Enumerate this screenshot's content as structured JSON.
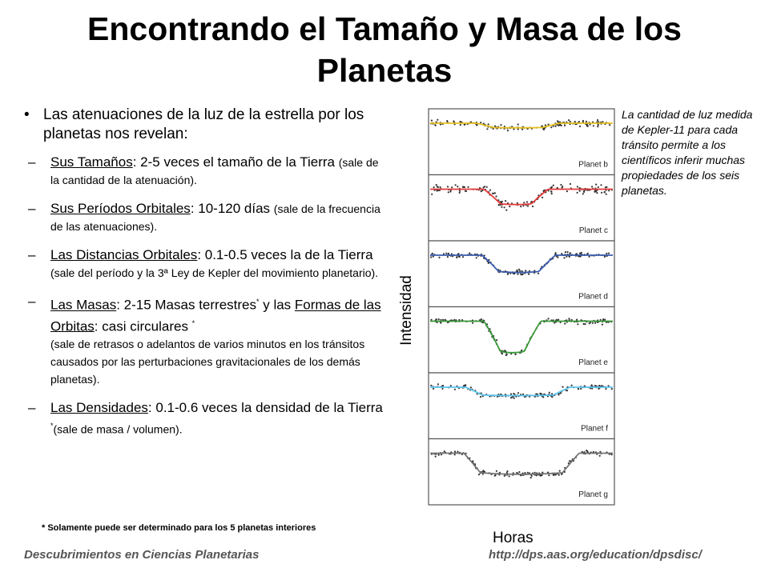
{
  "slide": {
    "title": "Encontrando el Tamaño y Masa de los Planetas",
    "bullet_main": "Las atenuaciones de la luz de la estrella por los planetas nos revelan:",
    "items": [
      {
        "label": "Sus Tamaños",
        "text": ": 2-5 veces el tamaño de la Tierra ",
        "note": "(sale de la cantidad de la atenuación)."
      },
      {
        "label": "Sus Períodos Orbitales",
        "text": ": 10-120 días ",
        "note": "(sale de la frecuencia de las atenuaciones)."
      },
      {
        "label": "Las Distancias Orbitales",
        "text": ": 0.1-0.5 veces la de la Tierra ",
        "note": "(sale del período y la 3ª Ley de Kepler del movimiento planetario)."
      },
      {
        "label": "Las Masas",
        "text": ": 2-15 Masas terrestres",
        "text2": " y las ",
        "label2": "Formas de las Orbitas",
        "text3": ": casi circulares ",
        "star": "*",
        "note": "(sale de retrasos o adelantos de varios minutos en los tránsitos causados por las perturbaciones gravitacionales de los demás planetas)."
      },
      {
        "label": "Las Densidades",
        "text": ": 0.1-0.6 veces la densidad de la Tierra ",
        "star": "*",
        "note": "(sale de masa / volumen)."
      }
    ],
    "footnote": "* Solamente puede ser determinado para los 5 planetas interiores",
    "side_caption": "La cantidad de luz medida de Kepler-11 para cada tránsito permite a los científicos inferir muchas propiedades de los seis planetas.",
    "footer_left": "Descubrimientos en Ciencias Planetarias",
    "footer_right": "http://dps.aas.org/education/dpsdisc/"
  },
  "chart_data": {
    "type": "line",
    "xlabel": "Horas",
    "ylabel": "Intensidad",
    "ylim": [
      0.0,
      1.0
    ],
    "series": [
      {
        "name": "Planet b",
        "color": "#e6c020",
        "depth": 0.12,
        "ingress": 0.3,
        "egress": 0.66
      },
      {
        "name": "Planet c",
        "color": "#e83a3a",
        "depth": 0.4,
        "ingress": 0.34,
        "egress": 0.6
      },
      {
        "name": "Planet d",
        "color": "#3a5cb0",
        "depth": 0.45,
        "ingress": 0.33,
        "egress": 0.64
      },
      {
        "name": "Planet e",
        "color": "#3a9a3a",
        "depth": 0.82,
        "ingress": 0.34,
        "egress": 0.56
      },
      {
        "name": "Planet f",
        "color": "#5ec6ee",
        "depth": 0.22,
        "ingress": 0.24,
        "egress": 0.72
      },
      {
        "name": "Planet g",
        "color": "#777777",
        "depth": 0.55,
        "ingress": 0.23,
        "egress": 0.77
      }
    ]
  }
}
